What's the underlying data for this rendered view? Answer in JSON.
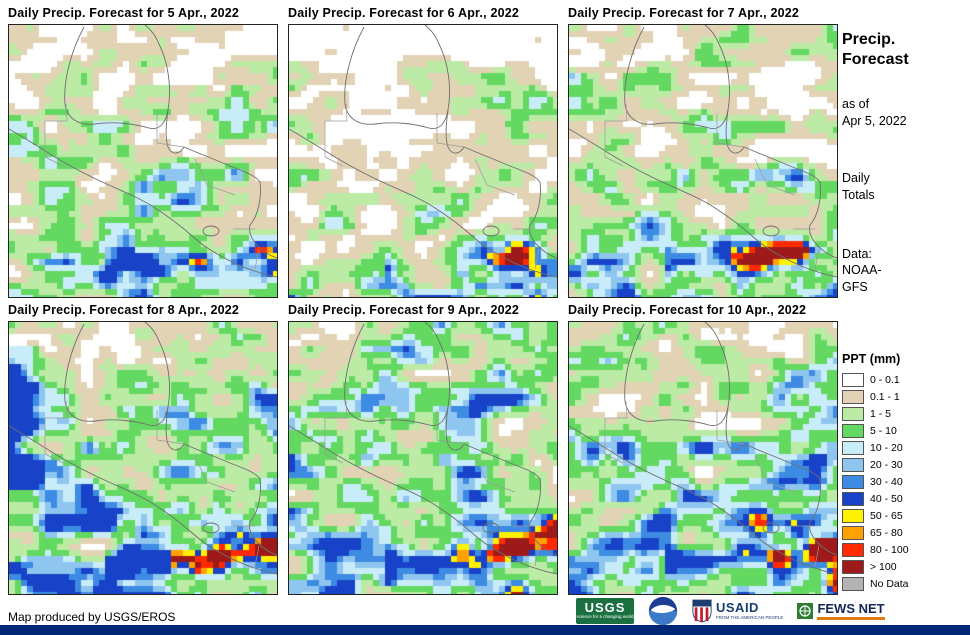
{
  "panels": [
    {
      "title": "Daily Precip. Forecast for 5 Apr., 2022"
    },
    {
      "title": "Daily Precip. Forecast for 6 Apr., 2022"
    },
    {
      "title": "Daily Precip. Forecast for 7 Apr., 2022"
    },
    {
      "title": "Daily Precip. Forecast for 8 Apr., 2022"
    },
    {
      "title": "Daily Precip. Forecast for 9 Apr., 2022"
    },
    {
      "title": "Daily Precip. Forecast for 10 Apr., 2022"
    }
  ],
  "sidebar": {
    "title_line1": "Precip.",
    "title_line2": "Forecast",
    "as_of_line1": "as of",
    "as_of_line2": "Apr 5, 2022",
    "totals_line1": "Daily",
    "totals_line2": "Totals",
    "data_line1": "Data:",
    "data_line2": "NOAA-",
    "data_line3": "GFS"
  },
  "legend": {
    "title": "PPT (mm)",
    "items": [
      {
        "label": "0 - 0.1",
        "color": "#FFFFFF"
      },
      {
        "label": "0.1 - 1",
        "color": "#E3D3B5"
      },
      {
        "label": "1 - 5",
        "color": "#BCEBA6"
      },
      {
        "label": "5 - 10",
        "color": "#64D961"
      },
      {
        "label": "10 - 20",
        "color": "#C9ECF9"
      },
      {
        "label": "20 - 30",
        "color": "#8FC6EF"
      },
      {
        "label": "30 - 40",
        "color": "#3E8BE4"
      },
      {
        "label": "40 - 50",
        "color": "#1843C8"
      },
      {
        "label": "50 - 65",
        "color": "#FFF200"
      },
      {
        "label": "65 - 80",
        "color": "#FFA200"
      },
      {
        "label": "80 - 100",
        "color": "#FF2A00"
      },
      {
        "label": "> 100",
        "color": "#9E1A1A"
      },
      {
        "label": "No Data",
        "color": "#B3B3B3"
      }
    ]
  },
  "footer": {
    "credit": "Map produced by USGS/EROS",
    "logos": [
      {
        "name": "USGS",
        "tagline": "science for a changing world"
      },
      {
        "name": "NOAA"
      },
      {
        "name": "USAID",
        "tagline": "FROM THE AMERICAN PEOPLE"
      },
      {
        "name": "FEWS NET"
      }
    ]
  }
}
